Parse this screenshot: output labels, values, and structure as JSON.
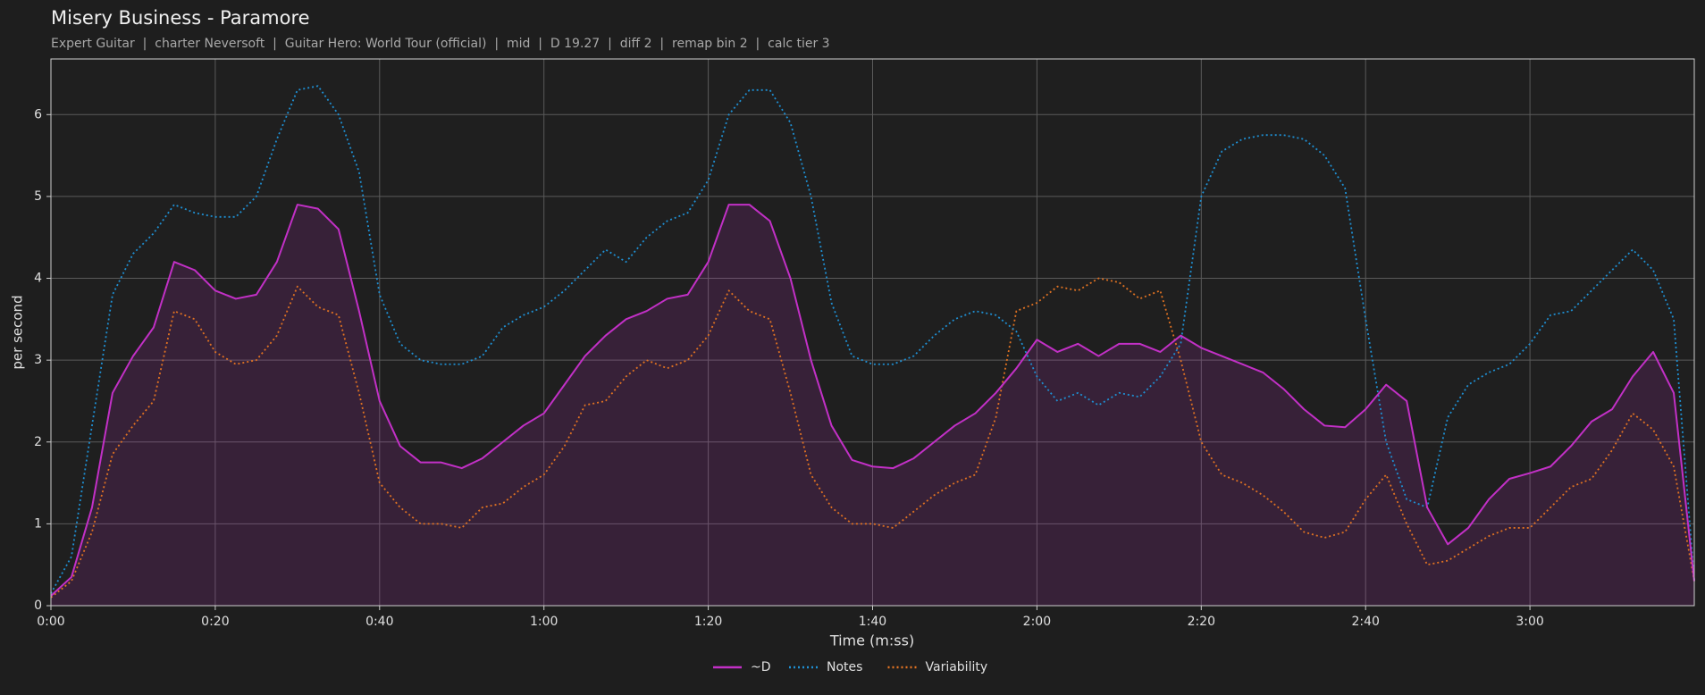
{
  "chart_data": {
    "type": "line",
    "title": "Misery Business - Paramore",
    "subtitle": "Expert Guitar  |  charter Neversoft  |  Guitar Hero: World Tour (official)  |  mid  |  D 19.27  |  diff 2  |  remap bin 2  |  calc tier 3",
    "xlabel": "Time (m:ss)",
    "ylabel": "per second",
    "xlim": [
      0,
      200
    ],
    "ylim": [
      0,
      6.68
    ],
    "xticks": [
      {
        "value": 0,
        "label": "0:00"
      },
      {
        "value": 20,
        "label": "0:20"
      },
      {
        "value": 40,
        "label": "0:40"
      },
      {
        "value": 60,
        "label": "1:00"
      },
      {
        "value": 80,
        "label": "1:20"
      },
      {
        "value": 100,
        "label": "1:40"
      },
      {
        "value": 120,
        "label": "2:00"
      },
      {
        "value": 140,
        "label": "2:20"
      },
      {
        "value": 160,
        "label": "2:40"
      },
      {
        "value": 180,
        "label": "3:00"
      }
    ],
    "yticks": [
      0,
      1,
      2,
      3,
      4,
      5,
      6
    ],
    "grid": true,
    "legend": "bottom",
    "x": [
      0,
      2.5,
      5,
      7.5,
      10,
      12.5,
      15,
      17.5,
      20,
      22.5,
      25,
      27.5,
      30,
      32.5,
      35,
      37.5,
      40,
      42.5,
      45,
      47.5,
      50,
      52.5,
      55,
      57.5,
      60,
      62.5,
      65,
      67.5,
      70,
      72.5,
      75,
      77.5,
      80,
      82.5,
      85,
      87.5,
      90,
      92.5,
      95,
      97.5,
      100,
      102.5,
      105,
      107.5,
      110,
      112.5,
      115,
      117.5,
      120,
      122.5,
      125,
      127.5,
      130,
      132.5,
      135,
      137.5,
      140,
      142.5,
      145,
      147.5,
      150,
      152.5,
      155,
      157.5,
      160,
      162.5,
      165,
      167.5,
      170,
      172.5,
      175,
      177.5,
      180,
      182.5,
      185,
      187.5,
      190,
      192.5,
      195,
      197.5,
      200
    ],
    "series": [
      {
        "name": "~D",
        "color": "#c230c6",
        "line_style": "solid",
        "fill": true,
        "values": [
          0.12,
          0.35,
          1.2,
          2.6,
          3.05,
          3.4,
          4.2,
          4.1,
          3.85,
          3.75,
          3.8,
          4.2,
          4.9,
          4.85,
          4.6,
          3.6,
          2.5,
          1.95,
          1.75,
          1.75,
          1.68,
          1.8,
          2.0,
          2.2,
          2.35,
          2.7,
          3.05,
          3.3,
          3.5,
          3.6,
          3.75,
          3.8,
          4.2,
          4.9,
          4.9,
          4.7,
          4.0,
          3.0,
          2.2,
          1.78,
          1.7,
          1.68,
          1.8,
          2.0,
          2.2,
          2.35,
          2.6,
          2.9,
          3.25,
          3.1,
          3.2,
          3.05,
          3.2,
          3.2,
          3.1,
          3.3,
          3.15,
          3.05,
          2.95,
          2.85,
          2.65,
          2.4,
          2.2,
          2.18,
          2.4,
          2.7,
          2.5,
          1.2,
          0.75,
          0.95,
          1.3,
          1.55,
          1.62,
          1.7,
          1.95,
          2.25,
          2.4,
          2.8,
          3.1,
          2.6,
          0.3
        ]
      },
      {
        "name": "Notes",
        "color": "#1f8fd2",
        "line_style": "dotted",
        "fill": false,
        "values": [
          0.15,
          0.6,
          2.2,
          3.8,
          4.3,
          4.55,
          4.9,
          4.8,
          4.75,
          4.75,
          5.0,
          5.7,
          6.3,
          6.35,
          6.0,
          5.3,
          3.8,
          3.2,
          3.0,
          2.95,
          2.95,
          3.05,
          3.4,
          3.55,
          3.65,
          3.85,
          4.1,
          4.35,
          4.2,
          4.5,
          4.7,
          4.8,
          5.2,
          6.0,
          6.3,
          6.3,
          5.9,
          5.0,
          3.7,
          3.05,
          2.95,
          2.95,
          3.05,
          3.3,
          3.5,
          3.6,
          3.55,
          3.35,
          2.8,
          2.5,
          2.6,
          2.45,
          2.6,
          2.55,
          2.8,
          3.2,
          5.0,
          5.55,
          5.7,
          5.75,
          5.75,
          5.7,
          5.5,
          5.1,
          3.5,
          2.0,
          1.3,
          1.2,
          2.3,
          2.7,
          2.85,
          2.95,
          3.2,
          3.55,
          3.6,
          3.85,
          4.1,
          4.35,
          4.1,
          3.5,
          0.3
        ]
      },
      {
        "name": "Variability",
        "color": "#e07222",
        "line_style": "dotted",
        "fill": false,
        "values": [
          0.1,
          0.3,
          0.9,
          1.85,
          2.2,
          2.5,
          3.6,
          3.5,
          3.1,
          2.95,
          3.0,
          3.3,
          3.9,
          3.65,
          3.55,
          2.6,
          1.5,
          1.2,
          1.0,
          1.0,
          0.95,
          1.2,
          1.25,
          1.45,
          1.6,
          1.95,
          2.45,
          2.5,
          2.8,
          3.0,
          2.9,
          3.0,
          3.3,
          3.85,
          3.6,
          3.5,
          2.6,
          1.6,
          1.2,
          1.0,
          1.0,
          0.95,
          1.15,
          1.35,
          1.5,
          1.6,
          2.3,
          3.6,
          3.7,
          3.9,
          3.85,
          4.0,
          3.95,
          3.75,
          3.85,
          3.0,
          2.0,
          1.6,
          1.5,
          1.35,
          1.15,
          0.9,
          0.83,
          0.9,
          1.3,
          1.6,
          1.0,
          0.5,
          0.55,
          0.7,
          0.85,
          0.95,
          0.95,
          1.2,
          1.45,
          1.55,
          1.9,
          2.35,
          2.15,
          1.7,
          0.3
        ]
      }
    ]
  }
}
